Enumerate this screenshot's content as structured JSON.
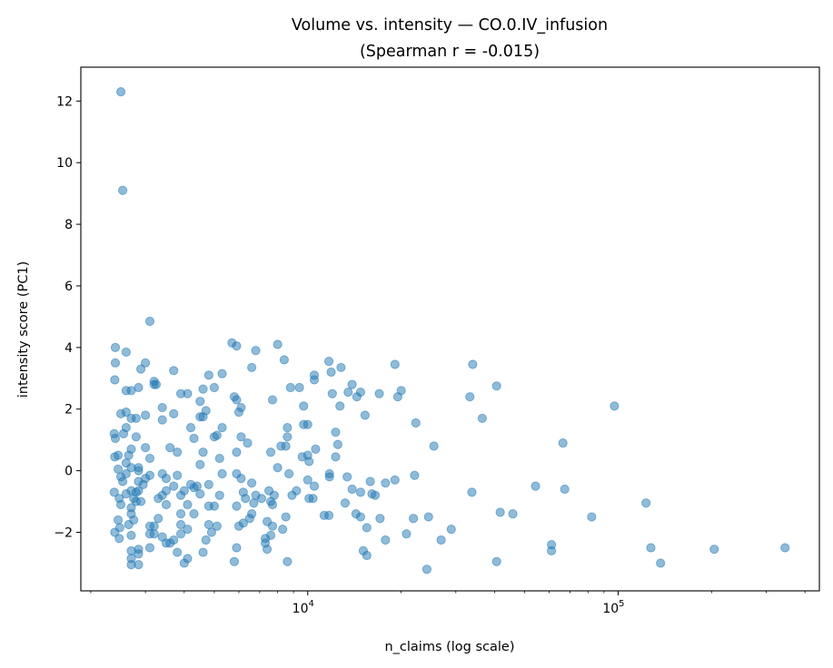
{
  "chart_data": {
    "type": "scatter",
    "title_line1": "Volume vs. intensity — CO.0.IV_infusion",
    "title_line2": "(Spearman r = -0.015)",
    "xlabel": "n_claims (log scale)",
    "ylabel": "intensity score (PC1)",
    "x_scale": "log",
    "xlim": [
      1858,
      445000
    ],
    "ylim": [
      -3.9,
      13.1
    ],
    "x_tick_values": [
      10000,
      100000
    ],
    "x_tick_base": "10",
    "x_tick_exponents": [
      "4",
      "5"
    ],
    "y_tick_values": [
      -2,
      0,
      2,
      4,
      6,
      8,
      10,
      12
    ],
    "y_tick_labels": [
      "−2",
      "0",
      "2",
      "4",
      "6",
      "8",
      "10",
      "12"
    ],
    "grid": false,
    "marker_color": "#1f77b4",
    "marker_alpha": 0.5,
    "points": [
      [
        2500,
        12.3
      ],
      [
        2535,
        9.1
      ],
      [
        2400,
        4.0
      ],
      [
        2400,
        3.5
      ],
      [
        2390,
        2.95
      ],
      [
        2500,
        1.85
      ],
      [
        2380,
        1.2
      ],
      [
        2390,
        0.45
      ],
      [
        2450,
        0.5
      ],
      [
        2400,
        1.05
      ],
      [
        2450,
        0.05
      ],
      [
        2380,
        -0.7
      ],
      [
        2470,
        -0.9
      ],
      [
        2500,
        -1.1
      ],
      [
        2450,
        -1.6
      ],
      [
        2480,
        -1.85
      ],
      [
        2390,
        -2.0
      ],
      [
        2470,
        -2.2
      ],
      [
        2535,
        -0.35
      ],
      [
        34000,
        3.45
      ],
      [
        33300,
        2.4
      ],
      [
        36500,
        1.7
      ],
      [
        40600,
        2.75
      ],
      [
        25500,
        0.8
      ],
      [
        22300,
        1.55
      ],
      [
        20000,
        2.6
      ],
      [
        19500,
        2.4
      ],
      [
        19100,
        3.45
      ],
      [
        19100,
        -0.3
      ],
      [
        22100,
        -0.15
      ],
      [
        17800,
        -0.4
      ],
      [
        16100,
        -0.75
      ],
      [
        15900,
        -0.35
      ],
      [
        16500,
        -0.8
      ],
      [
        17100,
        -1.55
      ],
      [
        15500,
        -1.85
      ],
      [
        14800,
        -1.5
      ],
      [
        17800,
        -2.25
      ],
      [
        20800,
        -2.05
      ],
      [
        21900,
        -1.55
      ],
      [
        24500,
        -1.5
      ],
      [
        26900,
        -2.25
      ],
      [
        29000,
        -1.9
      ],
      [
        24200,
        -3.2
      ],
      [
        15100,
        -2.6
      ],
      [
        15500,
        -2.75
      ],
      [
        33800,
        -0.7
      ],
      [
        41700,
        -1.35
      ],
      [
        45800,
        -1.4
      ],
      [
        54200,
        -0.5
      ],
      [
        61000,
        -2.4
      ],
      [
        61000,
        -2.6
      ],
      [
        66400,
        0.9
      ],
      [
        67300,
        -0.6
      ],
      [
        82200,
        -1.5
      ],
      [
        97300,
        2.1
      ],
      [
        123000,
        -1.05
      ],
      [
        127500,
        -2.5
      ],
      [
        137000,
        -3.0
      ],
      [
        204000,
        -2.55
      ],
      [
        345000,
        -2.5
      ],
      [
        40600,
        -2.95
      ],
      [
        15300,
        1.8
      ],
      [
        14800,
        2.55
      ],
      [
        13900,
        2.8
      ],
      [
        13500,
        2.55
      ],
      [
        14400,
        2.4
      ],
      [
        12800,
        3.35
      ],
      [
        11900,
        3.2
      ],
      [
        11700,
        3.55
      ],
      [
        12000,
        2.5
      ],
      [
        12700,
        2.1
      ],
      [
        12300,
        1.25
      ],
      [
        12500,
        0.85
      ],
      [
        12300,
        0.45
      ],
      [
        13400,
        -0.2
      ],
      [
        13200,
        -1.05
      ],
      [
        13900,
        -0.6
      ],
      [
        14300,
        -1.4
      ],
      [
        14800,
        -0.7
      ],
      [
        11750,
        -0.2
      ],
      [
        11750,
        -0.1
      ],
      [
        11700,
        -1.45
      ],
      [
        11300,
        -1.45
      ],
      [
        17000,
        2.5
      ],
      [
        10500,
        3.1
      ],
      [
        10500,
        2.95
      ],
      [
        9400,
        2.7
      ],
      [
        9700,
        2.1
      ],
      [
        10000,
        1.5
      ],
      [
        9700,
        1.5
      ],
      [
        10000,
        0.5
      ],
      [
        10100,
        0.3
      ],
      [
        10600,
        0.7
      ],
      [
        9600,
        0.45
      ],
      [
        10000,
        -0.3
      ],
      [
        10100,
        -0.9
      ],
      [
        10400,
        -0.9
      ],
      [
        10500,
        -0.5
      ],
      [
        9200,
        -0.65
      ],
      [
        8900,
        -0.8
      ],
      [
        8700,
        -0.1
      ],
      [
        8500,
        0.8
      ],
      [
        8600,
        1.1
      ],
      [
        8600,
        1.4
      ],
      [
        8800,
        2.7
      ],
      [
        8400,
        3.6
      ],
      [
        8000,
        4.1
      ],
      [
        7700,
        2.3
      ],
      [
        7600,
        0.6
      ],
      [
        8000,
        0.1
      ],
      [
        8200,
        0.8
      ],
      [
        7500,
        -0.65
      ],
      [
        7800,
        -0.8
      ],
      [
        7600,
        -1.0
      ],
      [
        7700,
        -1.1
      ],
      [
        7100,
        -0.9
      ],
      [
        6800,
        -0.8
      ],
      [
        6600,
        -0.4
      ],
      [
        6700,
        -1.05
      ],
      [
        6600,
        -1.4
      ],
      [
        6500,
        -1.55
      ],
      [
        7300,
        -2.2
      ],
      [
        7300,
        -2.35
      ],
      [
        7400,
        -2.55
      ],
      [
        7600,
        -2.1
      ],
      [
        8300,
        -1.9
      ],
      [
        8500,
        -1.5
      ],
      [
        8600,
        -2.95
      ],
      [
        7700,
        -1.8
      ],
      [
        7400,
        -1.65
      ],
      [
        6800,
        3.9
      ],
      [
        6600,
        3.35
      ],
      [
        6400,
        0.9
      ],
      [
        6100,
        1.1
      ],
      [
        5900,
        0.6
      ],
      [
        6100,
        -0.25
      ],
      [
        5900,
        -0.1
      ],
      [
        6100,
        2.05
      ],
      [
        6000,
        1.9
      ],
      [
        5900,
        2.3
      ],
      [
        5800,
        2.4
      ],
      [
        5700,
        4.15
      ],
      [
        5900,
        4.05
      ],
      [
        6200,
        -0.7
      ],
      [
        6300,
        -0.9
      ],
      [
        5900,
        -1.15
      ],
      [
        6000,
        -1.8
      ],
      [
        6200,
        -1.7
      ],
      [
        5900,
        -2.5
      ],
      [
        5800,
        -2.95
      ],
      [
        5300,
        3.15
      ],
      [
        5300,
        1.4
      ],
      [
        5100,
        1.15
      ],
      [
        5000,
        1.1
      ],
      [
        5200,
        0.4
      ],
      [
        5300,
        -0.1
      ],
      [
        5200,
        -0.8
      ],
      [
        5000,
        -1.15
      ],
      [
        4800,
        -1.15
      ],
      [
        5100,
        -1.8
      ],
      [
        4800,
        -1.75
      ],
      [
        4900,
        -2.0
      ],
      [
        4600,
        -2.65
      ],
      [
        4700,
        -2.25
      ],
      [
        4800,
        3.1
      ],
      [
        5000,
        2.7
      ],
      [
        4600,
        2.65
      ],
      [
        4700,
        1.95
      ],
      [
        4500,
        2.25
      ],
      [
        4600,
        1.75
      ],
      [
        4500,
        1.75
      ],
      [
        4300,
        1.05
      ],
      [
        4200,
        1.4
      ],
      [
        4600,
        0.6
      ],
      [
        4500,
        0.2
      ],
      [
        4800,
        -0.45
      ],
      [
        4500,
        -0.75
      ],
      [
        4400,
        -0.5
      ],
      [
        4300,
        -0.55
      ],
      [
        4200,
        -0.45
      ],
      [
        4000,
        -0.65
      ],
      [
        3900,
        -0.8
      ],
      [
        4100,
        -1.1
      ],
      [
        3900,
        -1.4
      ],
      [
        4300,
        -1.4
      ],
      [
        4100,
        -1.9
      ],
      [
        3900,
        -1.75
      ],
      [
        3900,
        -2.05
      ],
      [
        4100,
        -2.85
      ],
      [
        4000,
        -3.0
      ],
      [
        3800,
        -2.65
      ],
      [
        3700,
        -2.25
      ],
      [
        4100,
        2.5
      ],
      [
        3900,
        2.5
      ],
      [
        3700,
        3.25
      ],
      [
        3700,
        1.85
      ],
      [
        3800,
        0.6
      ],
      [
        3600,
        0.75
      ],
      [
        3800,
        -0.15
      ],
      [
        3700,
        -0.5
      ],
      [
        3500,
        -0.65
      ],
      [
        3500,
        -0.25
      ],
      [
        3400,
        -0.1
      ],
      [
        3400,
        -0.8
      ],
      [
        3300,
        -0.9
      ],
      [
        3500,
        -1.1
      ],
      [
        3300,
        -1.55
      ],
      [
        3200,
        -1.8
      ],
      [
        3200,
        -2.05
      ],
      [
        3100,
        -2.05
      ],
      [
        3100,
        -2.5
      ],
      [
        3400,
        -2.15
      ],
      [
        3500,
        -2.35
      ],
      [
        3600,
        -2.35
      ],
      [
        3100,
        -1.8
      ],
      [
        3100,
        -0.15
      ],
      [
        3000,
        -0.25
      ],
      [
        3100,
        0.4
      ],
      [
        3000,
        0.75
      ],
      [
        3000,
        1.8
      ],
      [
        3400,
        1.65
      ],
      [
        3400,
        2.05
      ],
      [
        3200,
        2.9
      ],
      [
        3200,
        2.8
      ],
      [
        3250,
        2.8
      ],
      [
        3100,
        4.85
      ],
      [
        3000,
        3.5
      ],
      [
        2900,
        3.3
      ],
      [
        2850,
        2.7
      ],
      [
        2950,
        -0.45
      ],
      [
        2850,
        -0.35
      ],
      [
        2900,
        -1.0
      ],
      [
        2850,
        0.1
      ],
      [
        2850,
        0.0
      ],
      [
        2800,
        1.1
      ],
      [
        2800,
        1.7
      ],
      [
        2700,
        1.7
      ],
      [
        2700,
        2.6
      ],
      [
        2600,
        2.6
      ],
      [
        2600,
        3.85
      ],
      [
        2700,
        0.7
      ],
      [
        2650,
        0.5
      ],
      [
        2600,
        0.25
      ],
      [
        2700,
        0.1
      ],
      [
        2600,
        -0.1
      ],
      [
        2700,
        -0.65
      ],
      [
        2800,
        -0.7
      ],
      [
        2850,
        -0.65
      ],
      [
        2750,
        -0.9
      ],
      [
        2800,
        -1.0
      ],
      [
        2700,
        -1.2
      ],
      [
        2700,
        -1.4
      ],
      [
        2750,
        -1.6
      ],
      [
        2650,
        -1.75
      ],
      [
        2700,
        -2.1
      ],
      [
        2700,
        -2.6
      ],
      [
        2850,
        -2.55
      ],
      [
        2850,
        -2.7
      ],
      [
        2700,
        -2.85
      ],
      [
        2700,
        -3.05
      ],
      [
        2850,
        -3.05
      ],
      [
        2600,
        1.9
      ],
      [
        2600,
        1.4
      ],
      [
        2550,
        1.2
      ],
      [
        2500,
        -0.2
      ],
      [
        2600,
        -0.75
      ]
    ]
  }
}
